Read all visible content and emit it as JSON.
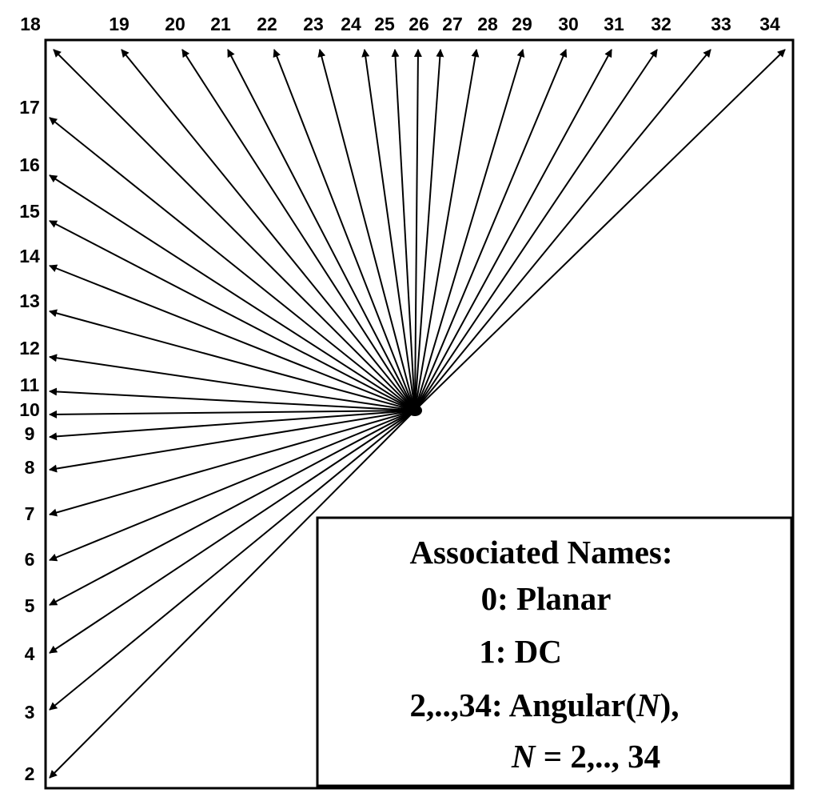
{
  "diagram": {
    "top_labels": [
      "18",
      "19",
      "20",
      "21",
      "22",
      "23",
      "24",
      "25",
      "26",
      "27",
      "28",
      "29",
      "30",
      "31",
      "32",
      "33",
      "34"
    ],
    "left_labels": [
      "17",
      "16",
      "15",
      "14",
      "13",
      "12",
      "11",
      "10",
      "9",
      "8",
      "7",
      "6",
      "5",
      "4",
      "3",
      "2"
    ],
    "legend": {
      "title": "Associated Names:",
      "line1": "0: Planar",
      "line2": "1: DC",
      "line3_prefix": "2,..,34: Angular(",
      "line3_var": "N",
      "line3_suffix": "),",
      "line4_var": "N",
      "line4_rest": " = 2,.., 34"
    },
    "colors": {
      "line": "#000000",
      "background": "#ffffff"
    }
  }
}
